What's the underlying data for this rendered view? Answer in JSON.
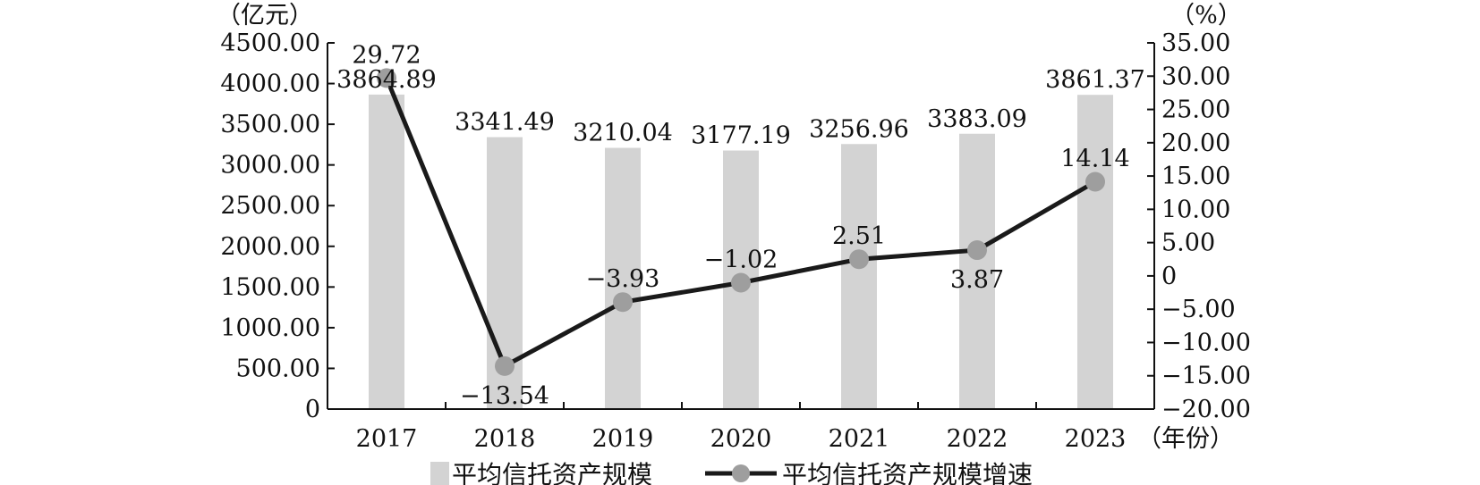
{
  "chart_data": {
    "type": "bar",
    "categories": [
      "2017",
      "2018",
      "2019",
      "2020",
      "2021",
      "2022",
      "2023"
    ],
    "x_unit": "（年份）",
    "series": [
      {
        "name": "平均信托资产规模",
        "type": "bar",
        "axis": "left",
        "color": "#d3d3d3",
        "values": [
          3864.89,
          3341.49,
          3210.04,
          3177.19,
          3256.96,
          3383.09,
          3861.37
        ],
        "labels": [
          "3864.89",
          "3341.49",
          "3210.04",
          "3177.19",
          "3256.96",
          "3383.09",
          "3861.37"
        ]
      },
      {
        "name": "平均信托资产规模增速",
        "type": "line",
        "axis": "right",
        "line_color": "#1a1a1a",
        "marker_color": "#9e9e9e",
        "values": [
          29.72,
          -13.54,
          -3.93,
          -1.02,
          2.51,
          3.87,
          14.14
        ],
        "labels": [
          "29.72",
          "−13.54",
          "−3.93",
          "−1.02",
          "2.51",
          "3.87",
          "14.14"
        ]
      }
    ],
    "y_left": {
      "unit": "（亿元）",
      "ylim": [
        0,
        4500
      ],
      "ticks": [
        0,
        500,
        1000,
        1500,
        2000,
        2500,
        3000,
        3500,
        4000,
        4500
      ],
      "tick_labels": [
        "0",
        "500.00",
        "1000.00",
        "1500.00",
        "2000.00",
        "2500.00",
        "3000.00",
        "3500.00",
        "4000.00",
        "4500.00"
      ]
    },
    "y_right": {
      "unit": "（%）",
      "ylim": [
        -20,
        35
      ],
      "ticks": [
        -20,
        -15,
        -10,
        -5,
        0,
        5,
        10,
        15,
        20,
        25,
        30,
        35
      ],
      "tick_labels": [
        "−20.00",
        "−15.00",
        "−10.00",
        "−5.00",
        "0",
        "5.00",
        "10.00",
        "15.00",
        "20.00",
        "25.00",
        "30.00",
        "35.00"
      ]
    },
    "grid": false,
    "legend": "bottom"
  }
}
